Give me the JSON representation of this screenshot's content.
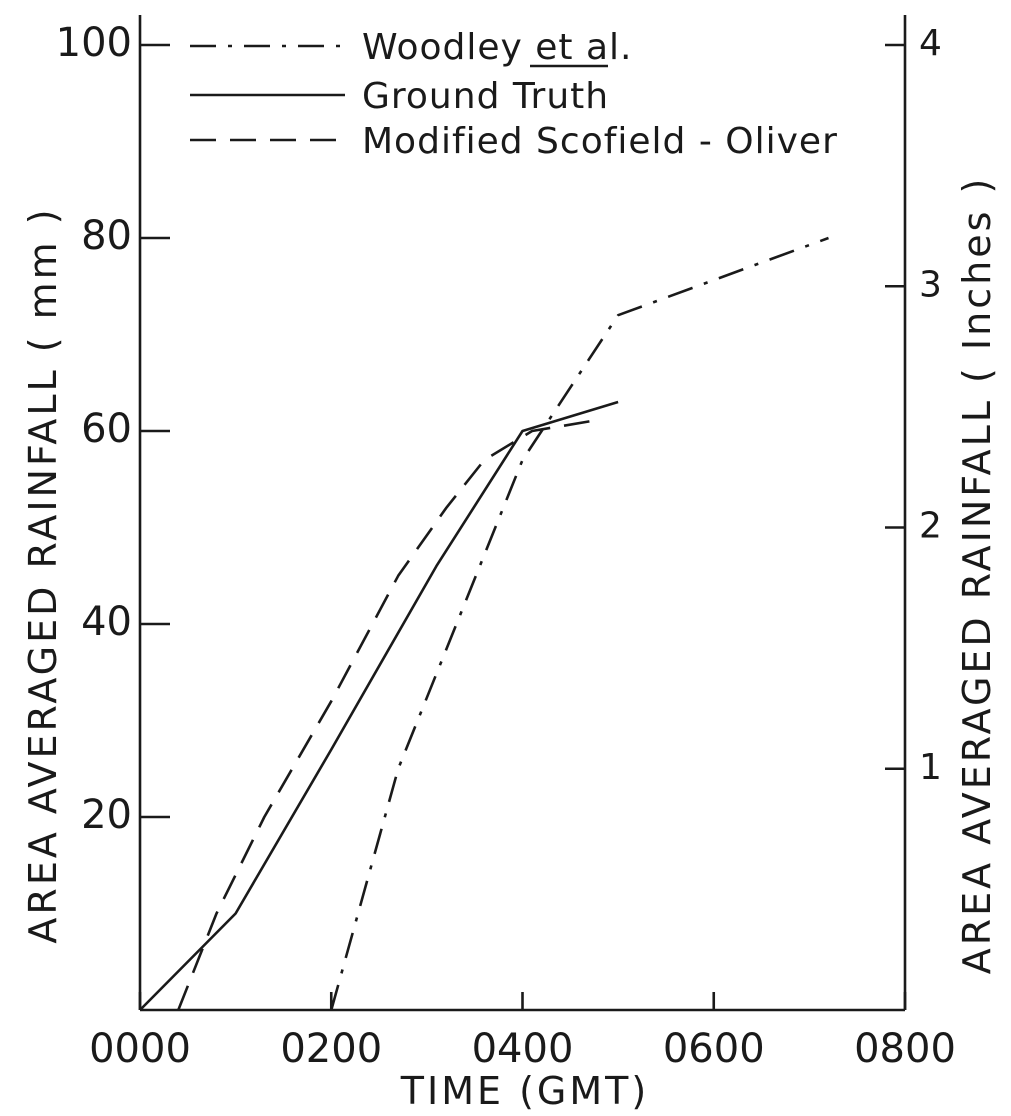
{
  "chart_data": {
    "type": "line",
    "xlabel": "TIME   (GMT)",
    "ylabel": "AREA  AVERAGED  RAINFALL  ( mm )",
    "y2label": "AREA  AVERAGED  RAINFALL  ( Inches )",
    "xlim": [
      0,
      800
    ],
    "ylim": [
      0,
      100
    ],
    "y2lim": [
      0,
      4
    ],
    "x_ticks": [
      "0000",
      "0200",
      "0400",
      "0600",
      "0800"
    ],
    "x_tick_values": [
      0,
      200,
      400,
      600,
      800
    ],
    "y_ticks": [
      "20",
      "40",
      "60",
      "80",
      "100"
    ],
    "y_tick_values": [
      20,
      40,
      60,
      80,
      100
    ],
    "y2_ticks": [
      "1",
      "2",
      "3",
      "4"
    ],
    "y2_tick_values": [
      1,
      2,
      3,
      4
    ],
    "grid": false,
    "legend_position": "top-left",
    "series": [
      {
        "name": "Woodley et al.",
        "style": "dash-dot",
        "x": [
          200,
          270,
          400,
          500,
          720
        ],
        "y": [
          0,
          25,
          57,
          72,
          80
        ]
      },
      {
        "name": "Ground Truth",
        "style": "solid",
        "x": [
          0,
          100,
          200,
          310,
          400,
          500
        ],
        "y": [
          0,
          10,
          27,
          46,
          60,
          63
        ]
      },
      {
        "name": "Modified  Scofield - Oliver",
        "style": "dashed",
        "x": [
          40,
          80,
          130,
          200,
          270,
          320,
          360,
          410,
          470
        ],
        "y": [
          0,
          10,
          20,
          32,
          45,
          52,
          57,
          60,
          61
        ]
      }
    ]
  }
}
